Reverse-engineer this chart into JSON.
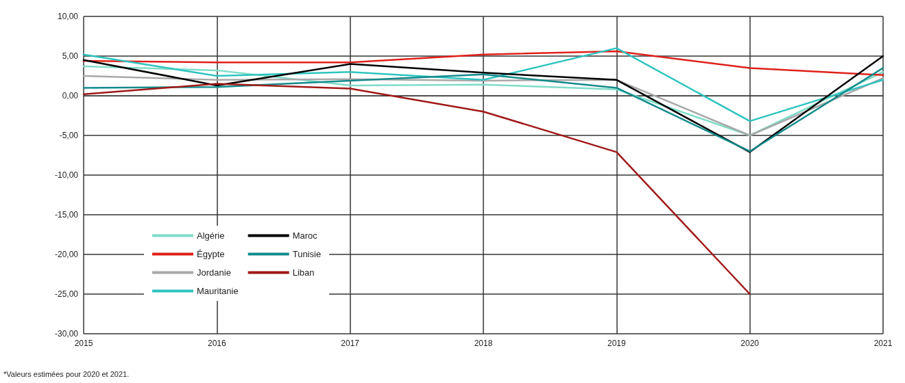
{
  "chart_data": {
    "type": "line",
    "categories": [
      "2015",
      "2016",
      "2017",
      "2018",
      "2019",
      "2020",
      "2021"
    ],
    "series": [
      {
        "name": "Algérie",
        "color": "#7fdcc8",
        "values": [
          3.7,
          3.2,
          1.3,
          1.4,
          0.8,
          -5.0,
          3.0
        ]
      },
      {
        "name": "Égypte",
        "color": "#e0201b",
        "values": [
          4.4,
          4.2,
          4.2,
          5.2,
          5.6,
          3.5,
          2.6
        ]
      },
      {
        "name": "Jordanie",
        "color": "#a8a8a8",
        "values": [
          2.5,
          2.0,
          2.1,
          1.9,
          2.0,
          -5.0,
          2.2
        ]
      },
      {
        "name": "Mauritanie",
        "color": "#2ec4c0",
        "values": [
          5.2,
          2.5,
          3.0,
          2.0,
          6.0,
          -3.2,
          2.0
        ]
      },
      {
        "name": "Maroc",
        "color": "#000000",
        "values": [
          4.5,
          1.3,
          4.0,
          2.9,
          2.0,
          -7.1,
          5.0
        ]
      },
      {
        "name": "Tunisie",
        "color": "#138a8a",
        "values": [
          1.0,
          1.1,
          1.9,
          2.7,
          1.0,
          -7.0,
          3.5
        ]
      },
      {
        "name": "Liban",
        "color": "#a01818",
        "values": [
          0.2,
          1.5,
          0.9,
          -2.0,
          -7.1,
          -25.0,
          null
        ]
      }
    ],
    "ylim": [
      -30,
      10
    ],
    "yticks": [
      {
        "value": -30,
        "label": "-30,00"
      },
      {
        "value": -25,
        "label": "-25,00"
      },
      {
        "value": -20,
        "label": "-20,00"
      },
      {
        "value": -15,
        "label": "-15,00"
      },
      {
        "value": -10,
        "label": "-10,00"
      },
      {
        "value": -5,
        "label": "-5,00"
      },
      {
        "value": 0,
        "label": "0,00"
      },
      {
        "value": 5,
        "label": "5,00"
      },
      {
        "value": 10,
        "label": "10,00"
      }
    ],
    "grid": true,
    "legend": "bottom left",
    "marker": "none",
    "line_style": "solid",
    "annotations": [
      "*Valeurs estimées pour 2020 et 2021."
    ]
  }
}
